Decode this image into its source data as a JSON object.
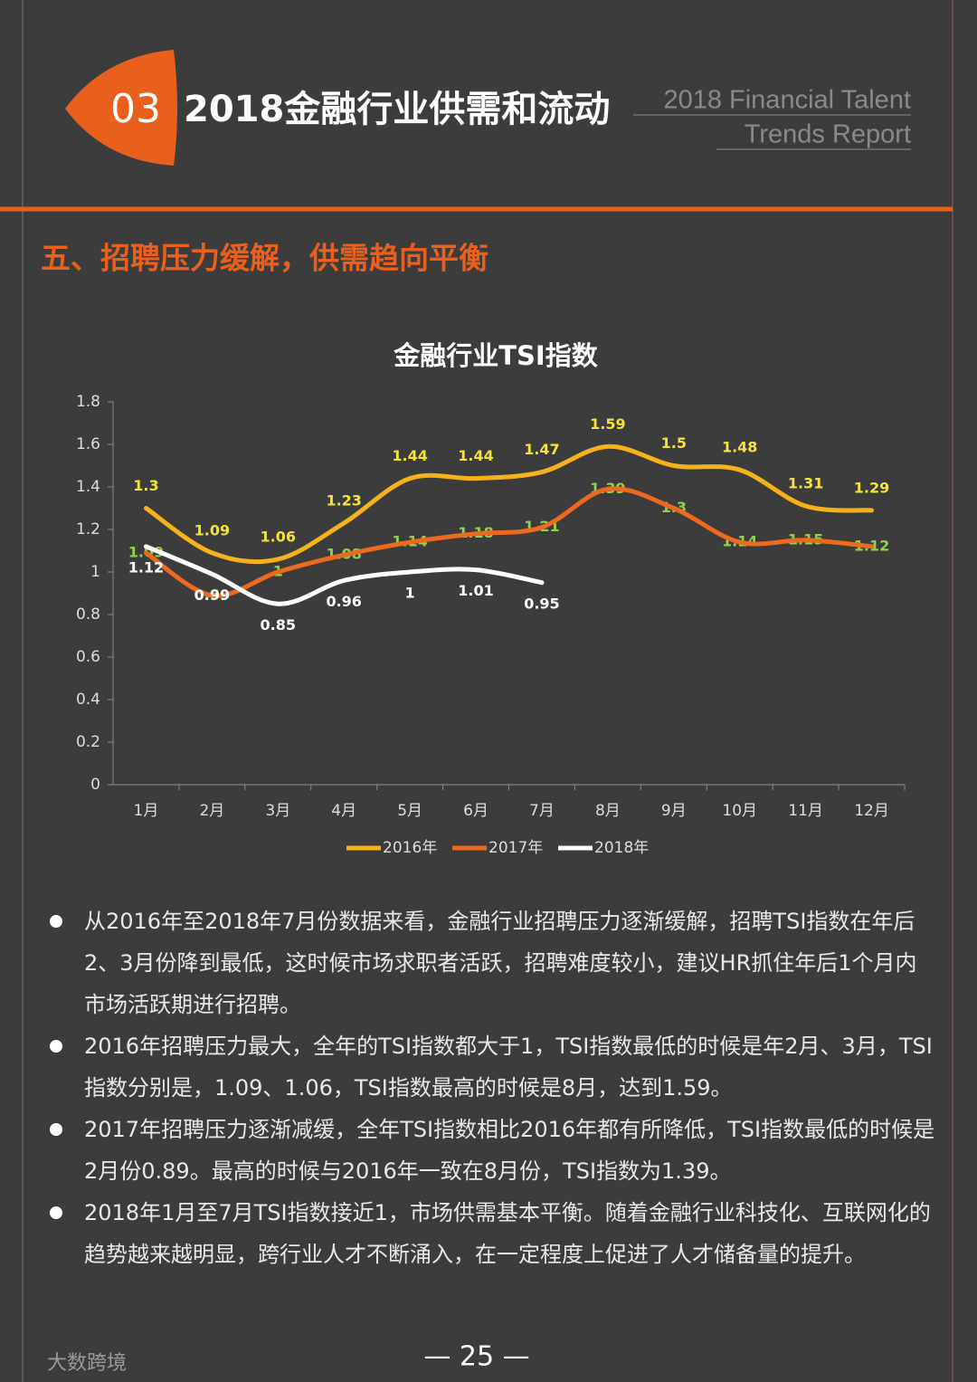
{
  "header": {
    "number": "03",
    "title": "2018金融行业供需和流动",
    "subtitle_lines": [
      "2018 Financial Talent",
      "Trends Report"
    ]
  },
  "section_heading": "五、招聘压力缓解，供需趋向平衡",
  "chart_data": {
    "type": "line",
    "title": "金融行业TSI指数",
    "categories": [
      "1月",
      "2月",
      "3月",
      "4月",
      "5月",
      "6月",
      "7月",
      "8月",
      "9月",
      "10月",
      "11月",
      "12月"
    ],
    "series": [
      {
        "name": "2016年",
        "color": "#f5b21a",
        "label_color": "#f5e23a",
        "label_position": "above",
        "values": [
          1.3,
          1.09,
          1.06,
          1.23,
          1.44,
          1.44,
          1.47,
          1.59,
          1.5,
          1.48,
          1.31,
          1.29
        ]
      },
      {
        "name": "2017年",
        "color": "#ec6a1f",
        "label_color": "#8fd14f",
        "label_position": "center",
        "values": [
          1.09,
          0.89,
          1,
          1.08,
          1.14,
          1.18,
          1.21,
          1.39,
          1.3,
          1.14,
          1.15,
          1.12
        ]
      },
      {
        "name": "2018年",
        "color": "#ffffff",
        "label_color": "#ffffff",
        "label_position": "below",
        "values": [
          1.12,
          0.99,
          0.85,
          0.96,
          1,
          1.01,
          0.95,
          null,
          null,
          null,
          null,
          null
        ]
      }
    ],
    "ylim": [
      0,
      1.8
    ],
    "yticks": [
      0,
      0.2,
      0.4,
      0.6,
      0.8,
      1,
      1.2,
      1.4,
      1.6,
      1.8
    ],
    "grid": false,
    "smooth": true,
    "legend": "bottom"
  },
  "bullets": [
    "从2016年至2018年7月份数据来看，金融行业招聘压力逐渐缓解，招聘TSI指数在年后2、3月份降到最低，这时候市场求职者活跃，招聘难度较小，建议HR抓住年后1个月内市场活跃期进行招聘。",
    "2016年招聘压力最大，全年的TSI指数都大于1，TSI指数最低的时候是年2月、3月，TSI指数分别是，1.09、1.06，TSI指数最高的时候是8月，达到1.59。",
    "2017年招聘压力逐渐减缓，全年TSI指数相比2016年都有所降低，TSI指数最低的时候是2月份0.89。最高的时候与2016年一致在8月份，TSI指数为1.39。",
    "2018年1月至7月TSI指数接近1，市场供需基本平衡。随着金融行业科技化、互联网化的趋势越来越明显，跨行业人才不断涌入，在一定程度上促进了人才储备量的提升。"
  ],
  "page_number": "— 25 —",
  "watermark": "大数跨境"
}
